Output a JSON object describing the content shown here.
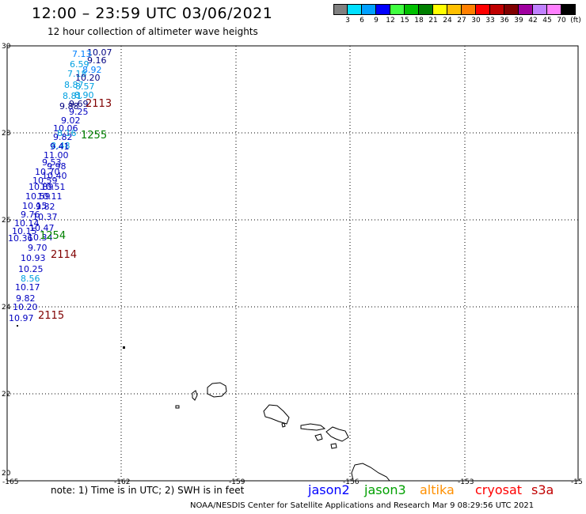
{
  "header": {
    "title": "12:00 – 23:59 UTC 03/06/2021",
    "subtitle": "12 hour collection of altimeter wave heights"
  },
  "scale": {
    "labels": [
      "3",
      "6",
      "9",
      "12",
      "15",
      "18",
      "21",
      "24",
      "27",
      "30",
      "33",
      "36",
      "39",
      "42",
      "45",
      "70",
      "(ft)"
    ],
    "colors": [
      "#808080",
      "#00e0ff",
      "#00a0ff",
      "#0000ff",
      "#40ff40",
      "#00c000",
      "#008000",
      "#ffff00",
      "#ffc000",
      "#ff8000",
      "#ff0000",
      "#c00000",
      "#800000",
      "#a000a0",
      "#c080ff",
      "#ff80ff",
      "#000000"
    ]
  },
  "map": {
    "lat_labels": [
      "30",
      "28",
      "26",
      "24",
      "22",
      "20"
    ],
    "lon_labels": [
      "-165",
      "-162",
      "-159",
      "-156",
      "-153",
      "-15"
    ]
  },
  "wave_labels": [
    {
      "t": "10.07",
      "c": "#000080"
    },
    {
      "t": "7.13",
      "c": "#0080ff"
    },
    {
      "t": "9.16",
      "c": "#000080"
    },
    {
      "t": "6.59",
      "c": "#00a0e0"
    },
    {
      "t": "8.92",
      "c": "#0080ff"
    },
    {
      "t": "7.18",
      "c": "#00a0e0"
    },
    {
      "t": "10.20",
      "c": "#000080"
    },
    {
      "t": "8.87",
      "c": "#00a0e0"
    },
    {
      "t": "8.57",
      "c": "#00a0e0"
    },
    {
      "t": "8.81",
      "c": "#00a0e0"
    },
    {
      "t": "8.90",
      "c": "#00a0e0"
    },
    {
      "t": "9.69",
      "c": "#000080"
    },
    {
      "t": "9.88",
      "c": "#000080"
    },
    {
      "t": "9.25",
      "c": "#0000c0"
    },
    {
      "t": "9.02",
      "c": "#0000c0"
    },
    {
      "t": "10.06",
      "c": "#0000c0"
    },
    {
      "t": "8.16",
      "c": "#00a0e0"
    },
    {
      "t": "9.82",
      "c": "#0000c0"
    },
    {
      "t": "8.48",
      "c": "#00a0e0"
    },
    {
      "t": "9.41",
      "c": "#0000c0"
    },
    {
      "t": "11.00",
      "c": "#0000c0"
    },
    {
      "t": "9.53",
      "c": "#0000c0"
    },
    {
      "t": "9.98",
      "c": "#0000c0"
    },
    {
      "t": "10.70",
      "c": "#0000c0"
    },
    {
      "t": "10.40",
      "c": "#0000c0"
    },
    {
      "t": "10.59",
      "c": "#0000c0"
    },
    {
      "t": "10.89",
      "c": "#0000c0"
    },
    {
      "t": "10.51",
      "c": "#0000c0"
    },
    {
      "t": "10.59",
      "c": "#0000c0"
    },
    {
      "t": "10.11",
      "c": "#0000c0"
    },
    {
      "t": "10.15",
      "c": "#0000c0"
    },
    {
      "t": "9.82",
      "c": "#0000c0"
    },
    {
      "t": "9.76",
      "c": "#0000c0"
    },
    {
      "t": "10.37",
      "c": "#0000c0"
    },
    {
      "t": "10.14",
      "c": "#0000c0"
    },
    {
      "t": "10.47",
      "c": "#0000c0"
    },
    {
      "t": "10.15",
      "c": "#0000c0"
    },
    {
      "t": "10.34",
      "c": "#0000c0"
    },
    {
      "t": "10.36",
      "c": "#0000c0"
    },
    {
      "t": "9.70",
      "c": "#0000c0"
    },
    {
      "t": "10.93",
      "c": "#0000c0"
    },
    {
      "t": "10.25",
      "c": "#0000c0"
    },
    {
      "t": "8.56",
      "c": "#00a0e0"
    },
    {
      "t": "10.17",
      "c": "#0000c0"
    },
    {
      "t": "9.82",
      "c": "#0000c0"
    },
    {
      "t": "10.20",
      "c": "#0000c0"
    },
    {
      "t": "10.97",
      "c": "#0000c0"
    }
  ],
  "pass_labels": [
    {
      "t": "2113",
      "c": "#800000"
    },
    {
      "t": "1255",
      "c": "#008000"
    },
    {
      "t": "1254",
      "c": "#008000"
    },
    {
      "t": "2114",
      "c": "#800000"
    },
    {
      "t": "2115",
      "c": "#800000"
    }
  ],
  "footer": {
    "note": "note:  1) Time is in UTC;  2) SWH is in feet",
    "satellites": [
      {
        "name": "jason2",
        "color": "#0000ff"
      },
      {
        "name": "jason3",
        "color": "#00a000"
      },
      {
        "name": "altika",
        "color": "#ff9000"
      },
      {
        "name": "cryosat",
        "color": "#ff0000"
      },
      {
        "name": "s3a",
        "color": "#c00000"
      }
    ],
    "credit": "NOAA/NESDIS Center for Satellite Applications and Research    Mar  9 08:29:56 UTC 2021"
  }
}
